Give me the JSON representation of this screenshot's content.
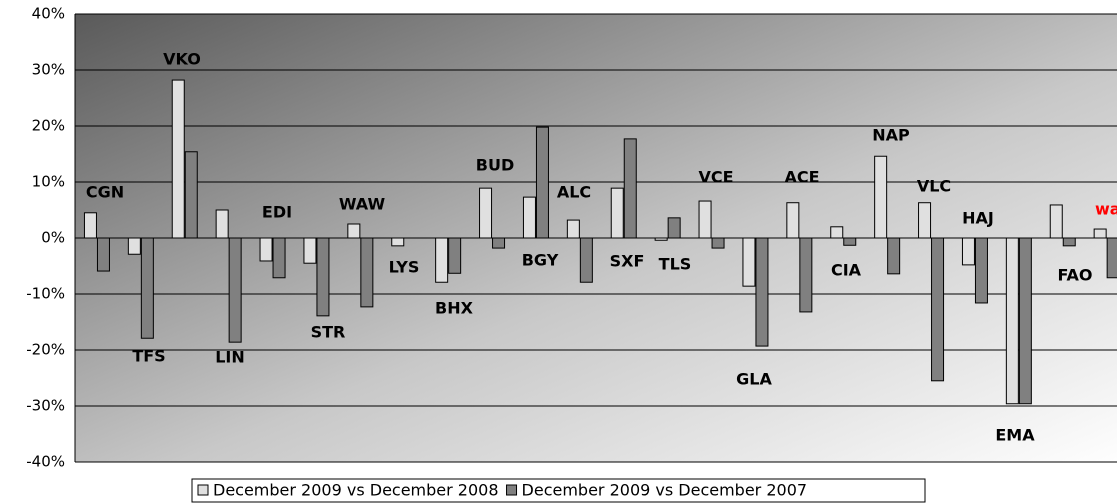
{
  "chart_data": {
    "type": "bar",
    "categories": [
      "CGN",
      "TFS",
      "VKO",
      "LIN",
      "EDI",
      "STR",
      "WAW",
      "LYS",
      "BHX",
      "BUD",
      "BGY",
      "ALC",
      "SXF",
      "TLS",
      "VCE",
      "GLA",
      "ACE",
      "CIA",
      "NAP",
      "VLC",
      "HAJ",
      "EMA",
      "FAO",
      "wa"
    ],
    "category_colors": [
      "#000000",
      "#000000",
      "#000000",
      "#000000",
      "#000000",
      "#000000",
      "#000000",
      "#000000",
      "#000000",
      "#000000",
      "#000000",
      "#000000",
      "#000000",
      "#000000",
      "#000000",
      "#000000",
      "#000000",
      "#000000",
      "#000000",
      "#000000",
      "#000000",
      "#000000",
      "#000000",
      "#ff0000"
    ],
    "series": [
      {
        "name": "December 2009 vs December 2008",
        "color": "#e0e0e0",
        "values": [
          4.5,
          -2.9,
          28.2,
          5.0,
          -4.1,
          -4.5,
          2.5,
          -1.4,
          -7.9,
          8.9,
          7.3,
          3.2,
          8.9,
          -0.4,
          6.6,
          -8.6,
          6.3,
          2.0,
          14.6,
          6.3,
          -4.8,
          -29.6,
          5.9,
          1.6
        ]
      },
      {
        "name": "December 2009 vs December 2007",
        "color": "#808080",
        "values": [
          -5.9,
          -17.9,
          15.4,
          -18.6,
          -7.1,
          -13.9,
          -12.3,
          null,
          -6.3,
          -1.8,
          19.8,
          -7.9,
          17.7,
          3.6,
          -1.8,
          -19.3,
          -13.2,
          -1.3,
          -6.4,
          -25.5,
          -11.6,
          -29.6,
          -1.4,
          -7.1
        ]
      }
    ],
    "ylim": [
      -40,
      40
    ],
    "yticks": [
      {
        "value": -40,
        "label": "-40%"
      },
      {
        "value": -30,
        "label": "-30%"
      },
      {
        "value": -20,
        "label": "-20%"
      },
      {
        "value": -10,
        "label": "-10%"
      },
      {
        "value": 0,
        "label": "0%"
      },
      {
        "value": 10,
        "label": "10%"
      },
      {
        "value": 20,
        "label": "20%"
      },
      {
        "value": 30,
        "label": "30%"
      },
      {
        "value": 40,
        "label": "40%"
      }
    ],
    "grid": true,
    "legend": "bottom"
  }
}
